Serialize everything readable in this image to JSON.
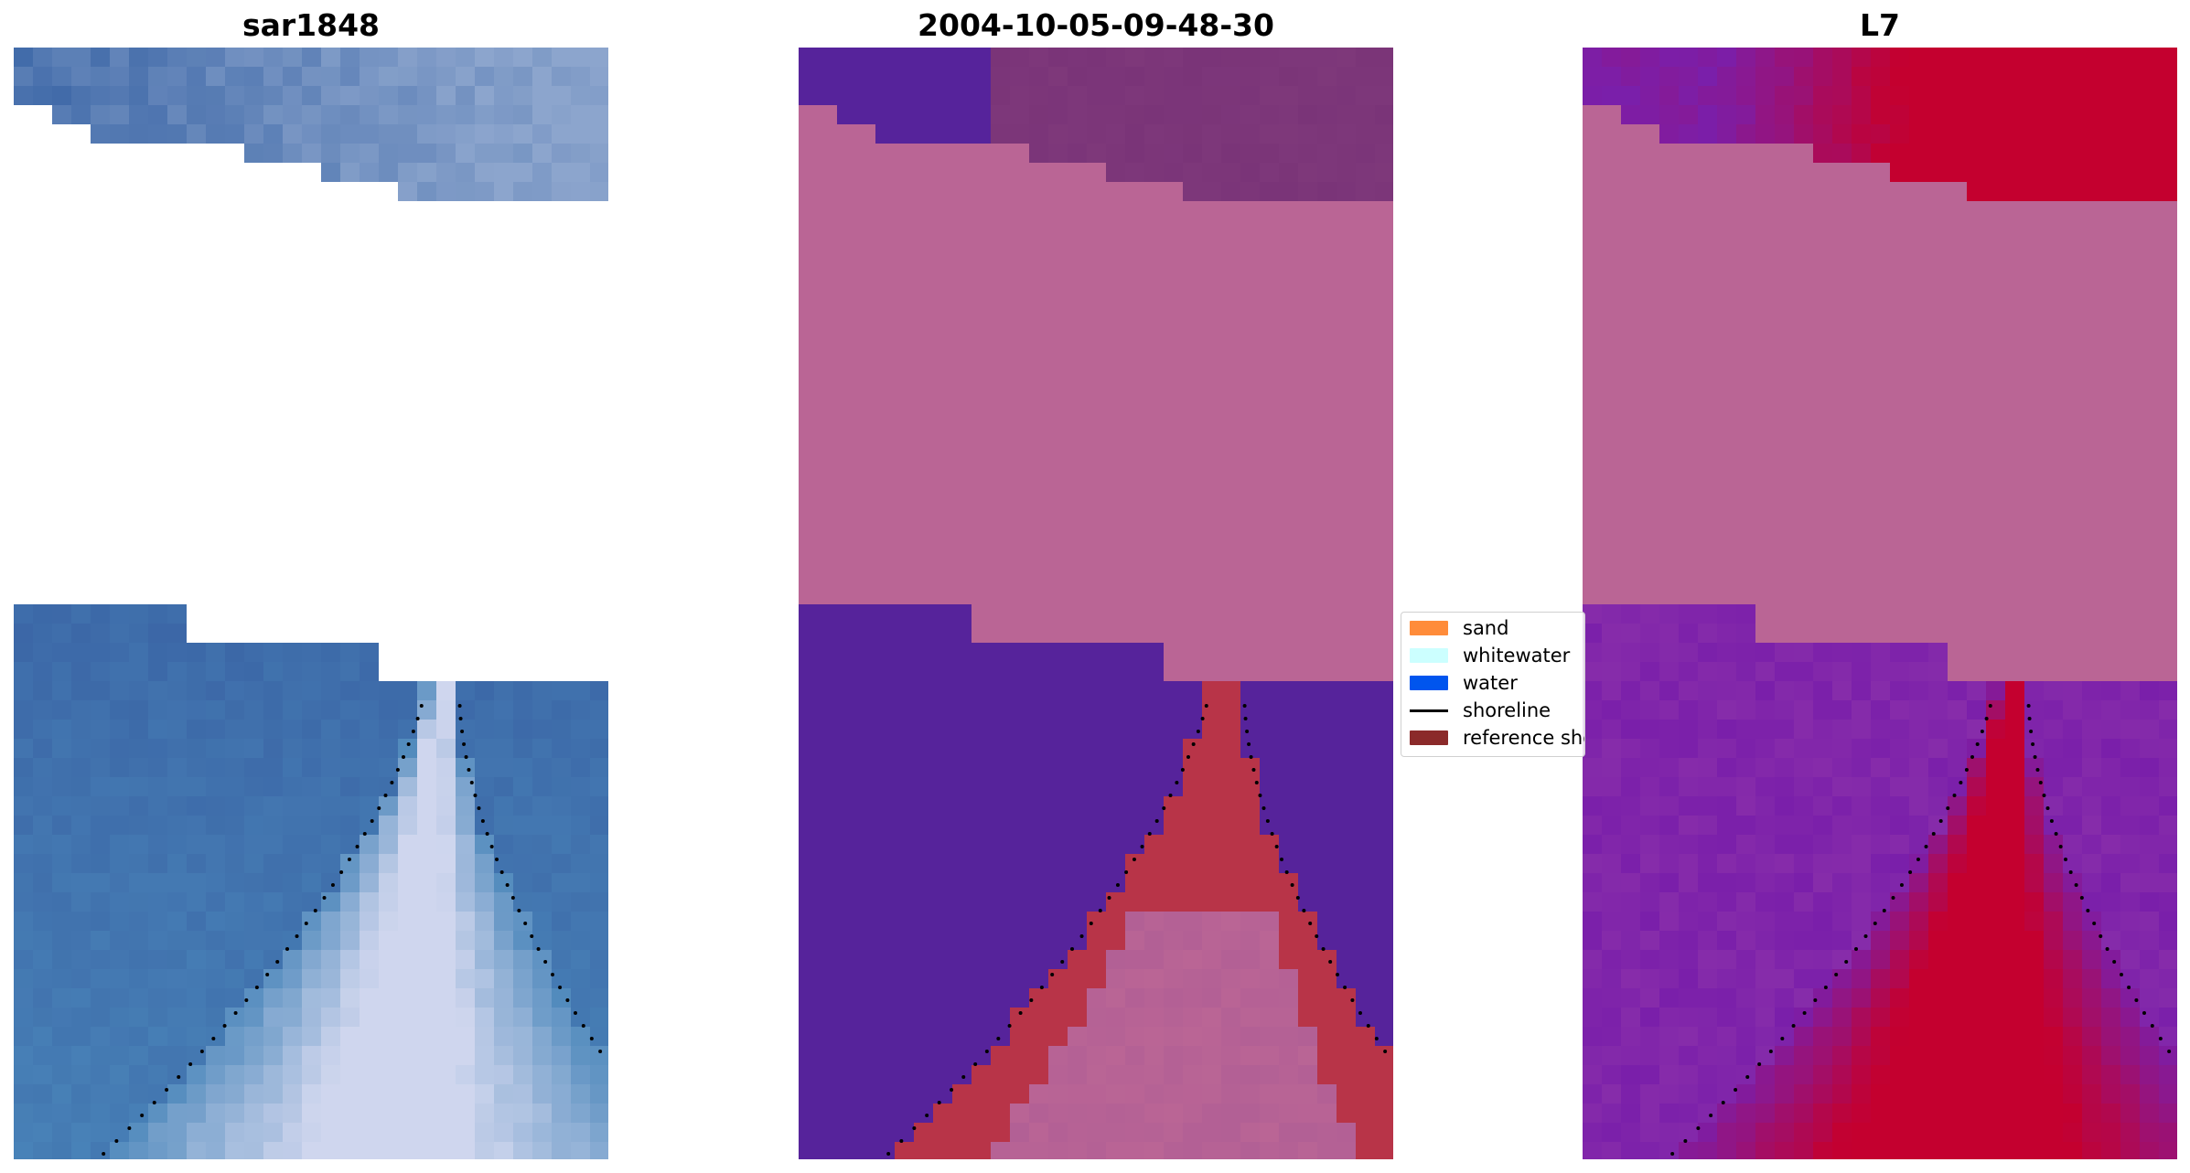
{
  "panels": [
    {
      "title": "sar1848"
    },
    {
      "title": "2004-10-05-09-48-30"
    },
    {
      "title": "L7"
    }
  ],
  "legend": {
    "entries": [
      {
        "label": "sand",
        "color": "#ff8c3a",
        "kind": "patch"
      },
      {
        "label": "whitewater",
        "color": "#ccffff",
        "kind": "patch"
      },
      {
        "label": "water",
        "color": "#0055ee",
        "kind": "patch"
      },
      {
        "label": "shoreline",
        "color": "#000000",
        "kind": "line"
      },
      {
        "label": "reference shoreline",
        "color": "#8b2a2a",
        "kind": "patch"
      }
    ]
  },
  "colors": {
    "rgb_water": "#3b66a6",
    "rgb_shallow": "#4a86ba",
    "rgb_breaking": "#cfd6ee",
    "classified_background": "#56239b",
    "classified_masked": "#ba6595",
    "classified_sand": "#b83448",
    "classified_top": "#7a3478",
    "ndwi_water": "#7a1faa",
    "ndwi_land": "#c4002f",
    "ndwi_masked": "#ba6595"
  }
}
